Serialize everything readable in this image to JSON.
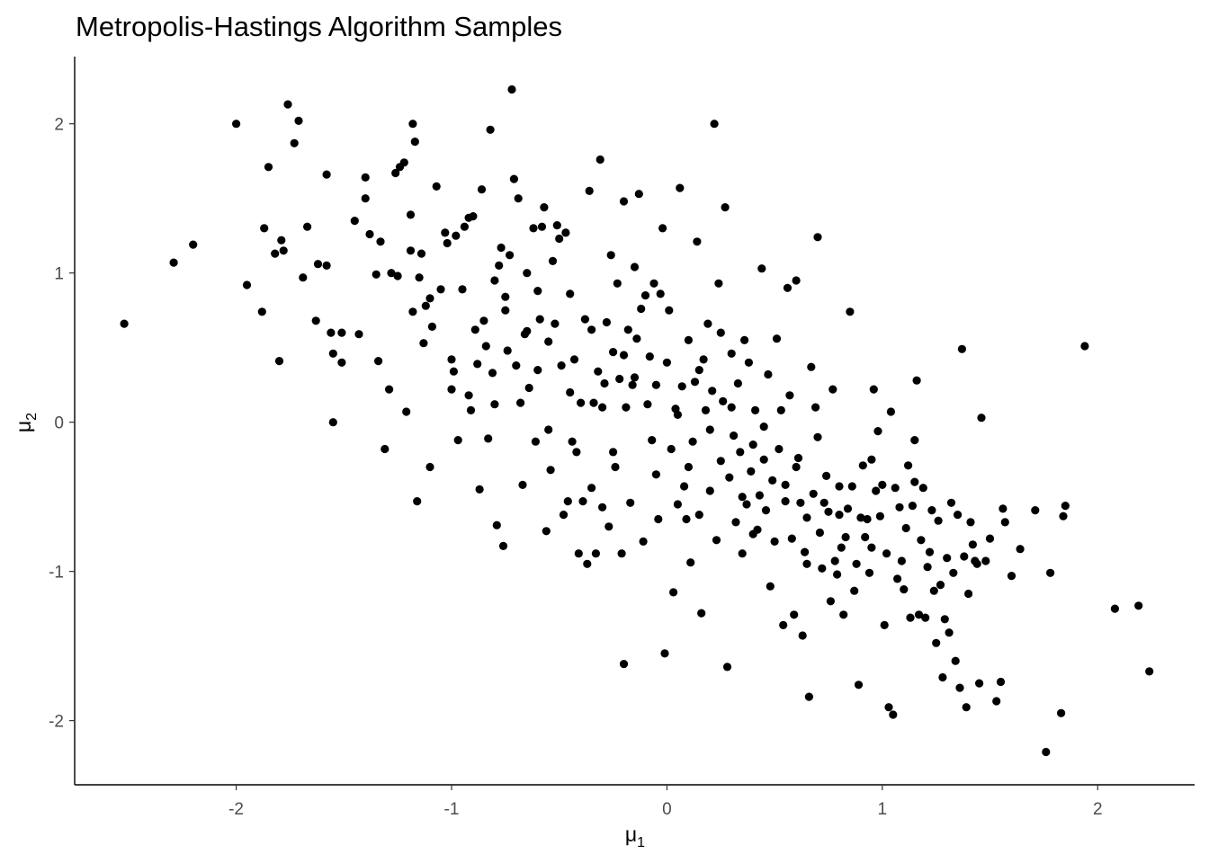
{
  "chart_data": {
    "type": "scatter",
    "title": "Metropolis-Hastings Algorithm Samples",
    "xlabel": "μ",
    "xlabel_sub": "1",
    "ylabel": "μ",
    "ylabel_sub": "2",
    "xlim": [
      -2.75,
      2.45
    ],
    "ylim": [
      -2.43,
      2.45
    ],
    "xticks": [
      -2,
      -1,
      0,
      1,
      2
    ],
    "xtick_labels": [
      "-2",
      "-1",
      "0",
      "1",
      "2"
    ],
    "yticks": [
      -2,
      -1,
      0,
      1,
      2
    ],
    "ytick_labels": [
      "-2",
      "-1",
      "0",
      "1",
      "2"
    ],
    "grid": false,
    "point_color": "#000000",
    "points": [
      [
        -2.52,
        0.66
      ],
      [
        -2.29,
        1.07
      ],
      [
        -2.2,
        1.19
      ],
      [
        -2.0,
        2.0
      ],
      [
        -1.95,
        0.92
      ],
      [
        -1.88,
        0.74
      ],
      [
        -1.87,
        1.3
      ],
      [
        -1.85,
        1.71
      ],
      [
        -1.82,
        1.13
      ],
      [
        -1.8,
        0.41
      ],
      [
        -1.79,
        1.22
      ],
      [
        -1.78,
        1.15
      ],
      [
        -1.76,
        2.13
      ],
      [
        -1.73,
        1.87
      ],
      [
        -1.71,
        2.02
      ],
      [
        -1.69,
        0.97
      ],
      [
        -1.67,
        1.31
      ],
      [
        -1.63,
        0.68
      ],
      [
        -1.62,
        1.06
      ],
      [
        -1.58,
        1.05
      ],
      [
        -1.58,
        1.66
      ],
      [
        -1.56,
        0.6
      ],
      [
        -1.55,
        0.46
      ],
      [
        -1.55,
        0.0
      ],
      [
        -1.51,
        0.4
      ],
      [
        -1.51,
        0.6
      ],
      [
        -1.45,
        1.35
      ],
      [
        -1.43,
        0.59
      ],
      [
        -1.4,
        1.64
      ],
      [
        -1.4,
        1.5
      ],
      [
        -1.38,
        1.26
      ],
      [
        -1.35,
        0.99
      ],
      [
        -1.34,
        0.41
      ],
      [
        -1.33,
        1.21
      ],
      [
        -1.31,
        -0.18
      ],
      [
        -1.29,
        0.22
      ],
      [
        -1.28,
        1.0
      ],
      [
        -1.26,
        1.67
      ],
      [
        -1.25,
        0.98
      ],
      [
        -1.24,
        1.71
      ],
      [
        -1.22,
        1.74
      ],
      [
        -1.21,
        0.07
      ],
      [
        -1.19,
        1.15
      ],
      [
        -1.19,
        1.39
      ],
      [
        -1.18,
        0.74
      ],
      [
        -1.18,
        2.0
      ],
      [
        -1.17,
        1.88
      ],
      [
        -1.16,
        -0.53
      ],
      [
        -1.15,
        0.97
      ],
      [
        -1.14,
        1.13
      ],
      [
        -1.13,
        0.53
      ],
      [
        -1.12,
        0.78
      ],
      [
        -1.1,
        -0.3
      ],
      [
        -1.1,
        0.83
      ],
      [
        -1.09,
        0.64
      ],
      [
        -1.07,
        1.58
      ],
      [
        -1.05,
        0.89
      ],
      [
        -1.03,
        1.27
      ],
      [
        -1.02,
        1.2
      ],
      [
        -1.0,
        0.42
      ],
      [
        -0.99,
        0.34
      ],
      [
        -0.98,
        1.25
      ],
      [
        -0.97,
        -0.12
      ],
      [
        -0.95,
        0.89
      ],
      [
        -0.94,
        1.31
      ],
      [
        -0.92,
        0.18
      ],
      [
        -0.91,
        0.08
      ],
      [
        -0.9,
        1.38
      ],
      [
        -0.89,
        0.62
      ],
      [
        -0.88,
        0.39
      ],
      [
        -0.87,
        -0.45
      ],
      [
        -0.86,
        1.56
      ],
      [
        -0.85,
        0.68
      ],
      [
        -0.84,
        0.51
      ],
      [
        -0.83,
        -0.11
      ],
      [
        -0.82,
        1.96
      ],
      [
        -0.81,
        0.33
      ],
      [
        -0.8,
        0.12
      ],
      [
        -0.79,
        -0.69
      ],
      [
        -0.78,
        1.05
      ],
      [
        -0.77,
        1.17
      ],
      [
        -0.76,
        -0.83
      ],
      [
        -0.75,
        0.84
      ],
      [
        -0.74,
        0.48
      ],
      [
        -0.73,
        1.12
      ],
      [
        -0.72,
        2.23
      ],
      [
        -0.71,
        1.63
      ],
      [
        -0.7,
        0.38
      ],
      [
        -0.69,
        1.5
      ],
      [
        -0.68,
        0.13
      ],
      [
        -0.67,
        -0.42
      ],
      [
        -0.66,
        0.59
      ],
      [
        -0.65,
        0.61
      ],
      [
        -0.64,
        0.23
      ],
      [
        -0.62,
        1.3
      ],
      [
        -0.61,
        -0.13
      ],
      [
        -0.6,
        0.88
      ],
      [
        -0.59,
        0.69
      ],
      [
        -0.58,
        1.31
      ],
      [
        -0.57,
        1.44
      ],
      [
        -0.56,
        -0.73
      ],
      [
        -0.55,
        0.54
      ],
      [
        -0.54,
        -0.32
      ],
      [
        -0.53,
        1.08
      ],
      [
        -0.52,
        0.66
      ],
      [
        -0.51,
        1.32
      ],
      [
        -0.5,
        1.23
      ],
      [
        -0.49,
        0.38
      ],
      [
        -0.48,
        -0.62
      ],
      [
        -0.47,
        1.27
      ],
      [
        -0.46,
        -0.53
      ],
      [
        -0.45,
        0.86
      ],
      [
        -0.44,
        -0.13
      ],
      [
        -0.43,
        0.42
      ],
      [
        -0.42,
        -0.2
      ],
      [
        -0.41,
        -0.88
      ],
      [
        -0.4,
        0.13
      ],
      [
        -0.39,
        -0.53
      ],
      [
        -0.38,
        0.69
      ],
      [
        -0.37,
        -0.95
      ],
      [
        -0.36,
        1.55
      ],
      [
        -0.35,
        -0.44
      ],
      [
        -0.34,
        0.13
      ],
      [
        -0.33,
        -0.88
      ],
      [
        -0.32,
        0.34
      ],
      [
        -0.31,
        1.76
      ],
      [
        -0.3,
        -0.57
      ],
      [
        -0.29,
        0.26
      ],
      [
        -0.28,
        0.67
      ],
      [
        -0.27,
        -0.7
      ],
      [
        -0.26,
        1.12
      ],
      [
        -0.25,
        0.47
      ],
      [
        -0.24,
        -0.3
      ],
      [
        -0.23,
        0.93
      ],
      [
        -0.22,
        0.29
      ],
      [
        -0.21,
        -0.88
      ],
      [
        -0.2,
        1.48
      ],
      [
        -0.2,
        -1.62
      ],
      [
        -0.19,
        0.1
      ],
      [
        -0.18,
        0.62
      ],
      [
        -0.17,
        -0.54
      ],
      [
        -0.16,
        0.25
      ],
      [
        -0.15,
        1.04
      ],
      [
        -0.14,
        0.56
      ],
      [
        -0.13,
        1.53
      ],
      [
        -0.12,
        0.76
      ],
      [
        -0.11,
        -0.8
      ],
      [
        -0.1,
        0.85
      ],
      [
        -0.09,
        0.12
      ],
      [
        -0.08,
        0.44
      ],
      [
        -0.07,
        -0.12
      ],
      [
        -0.06,
        0.93
      ],
      [
        -0.05,
        0.25
      ],
      [
        -0.04,
        -0.65
      ],
      [
        -0.03,
        0.86
      ],
      [
        -0.02,
        1.3
      ],
      [
        -0.01,
        -1.55
      ],
      [
        0.0,
        0.4
      ],
      [
        0.01,
        0.75
      ],
      [
        0.02,
        -0.18
      ],
      [
        0.03,
        -1.14
      ],
      [
        0.04,
        0.09
      ],
      [
        0.05,
        -0.55
      ],
      [
        0.06,
        1.57
      ],
      [
        0.07,
        0.24
      ],
      [
        0.08,
        -0.43
      ],
      [
        0.09,
        -0.65
      ],
      [
        0.1,
        0.55
      ],
      [
        0.11,
        -0.94
      ],
      [
        0.12,
        -0.13
      ],
      [
        0.13,
        0.27
      ],
      [
        0.14,
        1.21
      ],
      [
        0.15,
        -0.62
      ],
      [
        0.16,
        -1.28
      ],
      [
        0.17,
        0.42
      ],
      [
        0.18,
        0.08
      ],
      [
        0.19,
        0.66
      ],
      [
        0.2,
        -0.46
      ],
      [
        0.21,
        0.21
      ],
      [
        0.22,
        2.0
      ],
      [
        0.23,
        -0.79
      ],
      [
        0.24,
        0.93
      ],
      [
        0.25,
        -0.26
      ],
      [
        0.26,
        0.14
      ],
      [
        0.27,
        1.44
      ],
      [
        0.28,
        -1.64
      ],
      [
        0.29,
        -0.37
      ],
      [
        0.3,
        0.46
      ],
      [
        0.31,
        -0.09
      ],
      [
        0.32,
        -0.67
      ],
      [
        0.33,
        0.26
      ],
      [
        0.34,
        -0.2
      ],
      [
        0.35,
        -0.88
      ],
      [
        0.36,
        0.55
      ],
      [
        0.37,
        -0.55
      ],
      [
        0.38,
        0.4
      ],
      [
        0.39,
        -0.33
      ],
      [
        0.4,
        -0.15
      ],
      [
        0.41,
        0.08
      ],
      [
        0.42,
        -0.72
      ],
      [
        0.43,
        -0.49
      ],
      [
        0.44,
        1.03
      ],
      [
        0.45,
        -0.03
      ],
      [
        0.46,
        -0.59
      ],
      [
        0.47,
        0.32
      ],
      [
        0.48,
        -1.1
      ],
      [
        0.49,
        -0.39
      ],
      [
        0.5,
        -0.8
      ],
      [
        0.51,
        0.56
      ],
      [
        0.52,
        -0.18
      ],
      [
        0.53,
        0.08
      ],
      [
        0.54,
        -1.36
      ],
      [
        0.55,
        -0.53
      ],
      [
        0.56,
        0.9
      ],
      [
        0.57,
        0.18
      ],
      [
        0.58,
        -0.78
      ],
      [
        0.59,
        -1.29
      ],
      [
        0.6,
        0.95
      ],
      [
        0.61,
        -0.24
      ],
      [
        0.62,
        -0.54
      ],
      [
        0.63,
        -1.43
      ],
      [
        0.64,
        -0.87
      ],
      [
        0.65,
        -0.64
      ],
      [
        0.66,
        -1.84
      ],
      [
        0.67,
        0.37
      ],
      [
        0.68,
        -0.48
      ],
      [
        0.69,
        0.1
      ],
      [
        0.7,
        1.24
      ],
      [
        0.71,
        -0.74
      ],
      [
        0.72,
        -0.98
      ],
      [
        0.73,
        -0.54
      ],
      [
        0.74,
        -0.36
      ],
      [
        0.75,
        -0.6
      ],
      [
        0.76,
        -1.2
      ],
      [
        0.77,
        0.22
      ],
      [
        0.78,
        -0.93
      ],
      [
        0.79,
        -1.02
      ],
      [
        0.8,
        -0.43
      ],
      [
        0.81,
        -0.84
      ],
      [
        0.82,
        -1.29
      ],
      [
        0.83,
        -0.77
      ],
      [
        0.84,
        -0.58
      ],
      [
        0.85,
        0.74
      ],
      [
        0.86,
        -0.43
      ],
      [
        0.87,
        -1.13
      ],
      [
        0.88,
        -0.95
      ],
      [
        0.89,
        -1.76
      ],
      [
        0.9,
        -0.64
      ],
      [
        0.91,
        -0.29
      ],
      [
        0.92,
        -0.77
      ],
      [
        0.93,
        -0.65
      ],
      [
        0.94,
        -1.01
      ],
      [
        0.95,
        -0.84
      ],
      [
        0.96,
        0.22
      ],
      [
        0.97,
        -0.46
      ],
      [
        0.98,
        -0.06
      ],
      [
        0.99,
        -0.63
      ],
      [
        1.0,
        -0.42
      ],
      [
        1.01,
        -1.36
      ],
      [
        1.02,
        -0.88
      ],
      [
        1.03,
        -1.91
      ],
      [
        1.04,
        0.07
      ],
      [
        1.05,
        -1.96
      ],
      [
        1.06,
        -0.44
      ],
      [
        1.07,
        -1.05
      ],
      [
        1.08,
        -0.57
      ],
      [
        1.09,
        -0.93
      ],
      [
        1.1,
        -1.12
      ],
      [
        1.11,
        -0.71
      ],
      [
        1.12,
        -0.29
      ],
      [
        1.13,
        -1.31
      ],
      [
        1.14,
        -0.56
      ],
      [
        1.15,
        -0.12
      ],
      [
        1.16,
        0.28
      ],
      [
        1.17,
        -1.29
      ],
      [
        1.18,
        -0.79
      ],
      [
        1.19,
        -0.44
      ],
      [
        1.2,
        -1.31
      ],
      [
        1.21,
        -0.97
      ],
      [
        1.22,
        -0.87
      ],
      [
        1.23,
        -0.59
      ],
      [
        1.24,
        -1.13
      ],
      [
        1.25,
        -1.48
      ],
      [
        1.26,
        -0.66
      ],
      [
        1.27,
        -1.09
      ],
      [
        1.28,
        -1.71
      ],
      [
        1.29,
        -1.32
      ],
      [
        1.3,
        -0.91
      ],
      [
        1.31,
        -1.41
      ],
      [
        1.32,
        -0.54
      ],
      [
        1.33,
        -1.01
      ],
      [
        1.34,
        -1.6
      ],
      [
        1.35,
        -0.62
      ],
      [
        1.36,
        -1.78
      ],
      [
        1.37,
        0.49
      ],
      [
        1.38,
        -0.9
      ],
      [
        1.39,
        -1.91
      ],
      [
        1.4,
        -1.15
      ],
      [
        1.41,
        -0.67
      ],
      [
        1.42,
        -0.82
      ],
      [
        1.43,
        -0.93
      ],
      [
        1.44,
        -0.95
      ],
      [
        1.45,
        -1.75
      ],
      [
        1.46,
        0.03
      ],
      [
        1.48,
        -0.93
      ],
      [
        1.5,
        -0.78
      ],
      [
        1.53,
        -1.87
      ],
      [
        1.55,
        -1.74
      ],
      [
        1.56,
        -0.58
      ],
      [
        1.57,
        -0.67
      ],
      [
        1.6,
        -1.03
      ],
      [
        1.64,
        -0.85
      ],
      [
        1.71,
        -0.59
      ],
      [
        1.76,
        -2.21
      ],
      [
        1.78,
        -1.01
      ],
      [
        1.83,
        -1.95
      ],
      [
        1.84,
        -0.63
      ],
      [
        1.85,
        -0.56
      ],
      [
        1.94,
        0.51
      ],
      [
        2.08,
        -1.25
      ],
      [
        2.19,
        -1.23
      ],
      [
        2.24,
        -1.67
      ],
      [
        -0.92,
        1.37
      ],
      [
        -0.6,
        0.35
      ],
      [
        -0.3,
        0.1
      ],
      [
        0.1,
        -0.3
      ],
      [
        0.35,
        -0.5
      ],
      [
        0.6,
        -0.3
      ],
      [
        -0.45,
        0.2
      ],
      [
        -0.2,
        0.45
      ],
      [
        0.05,
        0.05
      ],
      [
        0.25,
        0.6
      ],
      [
        0.45,
        -0.25
      ],
      [
        0.7,
        -0.1
      ],
      [
        -0.75,
        0.75
      ],
      [
        -0.55,
        -0.05
      ],
      [
        -0.25,
        -0.2
      ],
      [
        0.15,
        0.35
      ],
      [
        0.4,
        -0.75
      ],
      [
        0.8,
        -0.62
      ],
      [
        -1.0,
        0.22
      ],
      [
        -0.8,
        0.95
      ],
      [
        -0.35,
        0.62
      ],
      [
        -0.05,
        -0.35
      ],
      [
        0.2,
        -0.05
      ],
      [
        0.55,
        -0.42
      ],
      [
        -0.65,
        1.0
      ],
      [
        -0.15,
        0.3
      ],
      [
        0.3,
        0.1
      ],
      [
        0.65,
        -0.95
      ],
      [
        0.95,
        -0.25
      ],
      [
        1.15,
        -0.4
      ]
    ]
  }
}
